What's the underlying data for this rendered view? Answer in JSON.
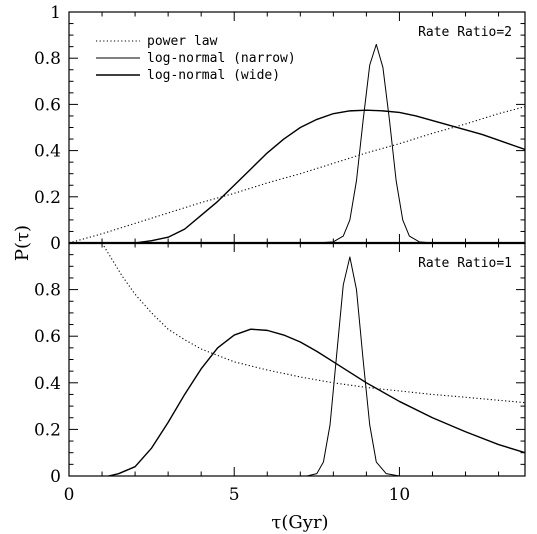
{
  "chart_data": {
    "type": "line",
    "xlabel": "τ(Gyr)",
    "ylabel": "P(τ)",
    "xlim": [
      0,
      13.8
    ],
    "x_ticks": [
      0,
      5,
      10
    ],
    "x_tick_labels": [
      "0",
      "5",
      "10"
    ],
    "grid": false,
    "legend": {
      "placement": "top-left",
      "entries": [
        {
          "label": "power law",
          "style": "dotted"
        },
        {
          "label": "log-normal (narrow)",
          "style": "solid-thin"
        },
        {
          "label": "log-normal (wide)",
          "style": "solid"
        }
      ]
    },
    "panels": [
      {
        "label": "Rate Ratio=2",
        "ylim": [
          0,
          1
        ],
        "y_ticks": [
          0,
          0.2,
          0.4,
          0.6,
          0.8,
          1
        ],
        "y_tick_labels": [
          "0",
          "0.2",
          "0.4",
          "0.6",
          "0.8",
          "1"
        ],
        "series": [
          {
            "name": "power law",
            "style": "dotted",
            "x": [
              0,
              1,
              2,
              3,
              4,
              5,
              6,
              7,
              8,
              9,
              10,
              11,
              12,
              13,
              13.8
            ],
            "y": [
              0.0,
              0.04,
              0.085,
              0.13,
              0.175,
              0.215,
              0.26,
              0.3,
              0.345,
              0.39,
              0.43,
              0.475,
              0.515,
              0.56,
              0.59
            ]
          },
          {
            "name": "log-normal (narrow)",
            "style": "solid-thin",
            "x": [
              7.5,
              8.0,
              8.3,
              8.5,
              8.7,
              8.9,
              9.1,
              9.3,
              9.5,
              9.7,
              9.9,
              10.1,
              10.3,
              10.6,
              11.0
            ],
            "y": [
              0.0,
              0.005,
              0.03,
              0.1,
              0.27,
              0.53,
              0.77,
              0.86,
              0.76,
              0.53,
              0.27,
              0.1,
              0.03,
              0.005,
              0.0
            ]
          },
          {
            "name": "log-normal (wide)",
            "style": "solid",
            "x": [
              2.0,
              2.5,
              3.0,
              3.5,
              4.0,
              4.5,
              5.0,
              5.5,
              6.0,
              6.5,
              7.0,
              7.5,
              8.0,
              8.5,
              9.0,
              9.5,
              10.0,
              10.5,
              11.0,
              11.5,
              12.0,
              12.5,
              13.0,
              13.5,
              13.8
            ],
            "y": [
              0.0,
              0.01,
              0.025,
              0.06,
              0.12,
              0.18,
              0.25,
              0.32,
              0.39,
              0.45,
              0.5,
              0.535,
              0.56,
              0.572,
              0.575,
              0.572,
              0.565,
              0.55,
              0.53,
              0.51,
              0.49,
              0.47,
              0.445,
              0.42,
              0.405
            ]
          }
        ]
      },
      {
        "label": "Rate Ratio=1",
        "ylim": [
          0,
          1
        ],
        "y_ticks": [
          0,
          0.2,
          0.4,
          0.6,
          0.8
        ],
        "y_tick_labels": [
          "0",
          "0.2",
          "0.4",
          "0.6",
          "0.8"
        ],
        "series": [
          {
            "name": "power law",
            "style": "dotted",
            "x": [
              1.0,
              1.3,
              1.6,
              2.0,
              2.5,
              3.0,
              3.5,
              4.0,
              5.0,
              6.0,
              7.0,
              8.0,
              9.0,
              10.0,
              11.0,
              12.0,
              13.0,
              13.8
            ],
            "y": [
              1.0,
              0.93,
              0.86,
              0.78,
              0.7,
              0.63,
              0.585,
              0.545,
              0.49,
              0.455,
              0.425,
              0.4,
              0.38,
              0.365,
              0.35,
              0.338,
              0.325,
              0.315
            ]
          },
          {
            "name": "log-normal (narrow)",
            "style": "solid-thin",
            "x": [
              7.2,
              7.5,
              7.7,
              7.9,
              8.1,
              8.3,
              8.5,
              8.7,
              8.9,
              9.1,
              9.3,
              9.6,
              10.0
            ],
            "y": [
              0.0,
              0.01,
              0.06,
              0.22,
              0.52,
              0.82,
              0.94,
              0.8,
              0.5,
              0.22,
              0.06,
              0.01,
              0.0
            ]
          },
          {
            "name": "log-normal (wide)",
            "style": "solid",
            "x": [
              1.2,
              1.5,
              2.0,
              2.5,
              3.0,
              3.5,
              4.0,
              4.5,
              5.0,
              5.5,
              6.0,
              6.5,
              7.0,
              7.5,
              8.0,
              8.5,
              9.0,
              10.0,
              11.0,
              12.0,
              13.0,
              13.8
            ],
            "y": [
              0.0,
              0.01,
              0.04,
              0.12,
              0.23,
              0.35,
              0.46,
              0.55,
              0.605,
              0.63,
              0.625,
              0.605,
              0.575,
              0.535,
              0.49,
              0.445,
              0.4,
              0.32,
              0.25,
              0.19,
              0.135,
              0.1
            ]
          }
        ]
      }
    ]
  }
}
